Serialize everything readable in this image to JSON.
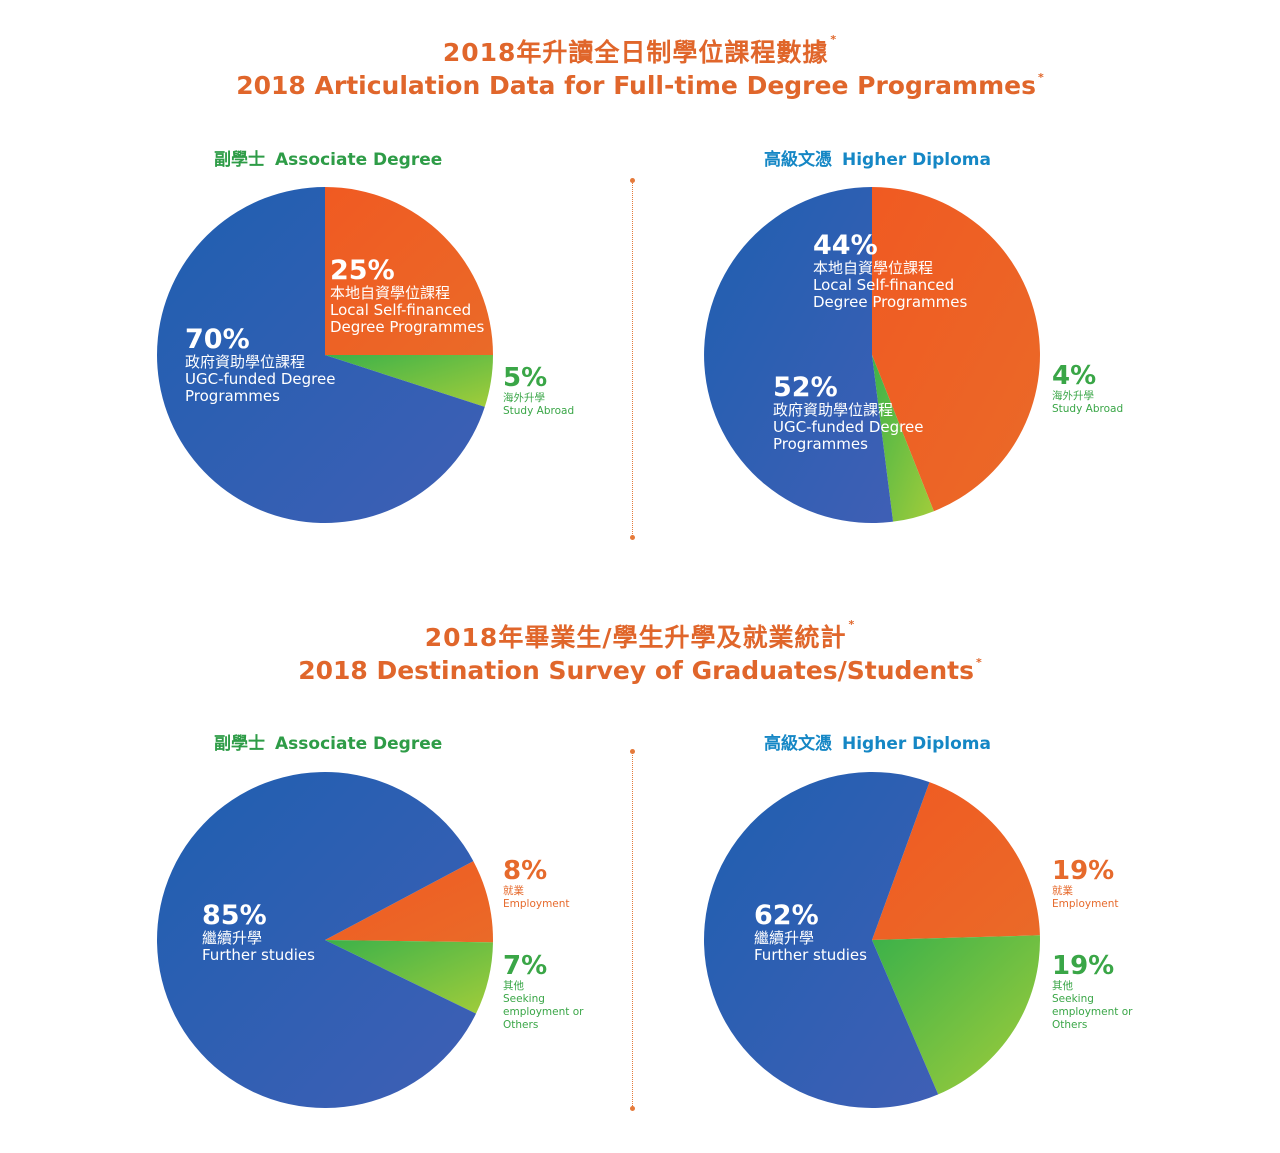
{
  "colors": {
    "title": "#e0662b",
    "associate_heading": "#2e9c47",
    "higher_heading": "#1587c5",
    "blue": "#2a63ad",
    "orange": "#ec6324",
    "green": "#6cc041",
    "employment_text": "#e66a2c",
    "others_text": "#3aa647",
    "divider": "#e57a3a"
  },
  "sections": [
    {
      "title_zh": "2018年升讀全日制學位課程數據",
      "title_en": "2018 Articulation Data for Full-time Degree Programmes",
      "asterisk": "*"
    },
    {
      "title_zh": "2018年畢業生/學生升學及就業統計",
      "title_en": "2018 Destination Survey of Graduates/Students",
      "asterisk": "*"
    }
  ],
  "charts": [
    {
      "heading_zh": "副學士",
      "heading_en": "Associate Degree",
      "labels": [
        {
          "pct": "25%",
          "zh": "本地自資學位課程",
          "en1": "Local Self-financed",
          "en2": "Degree Programmes"
        },
        {
          "pct": "70%",
          "zh": "政府資助學位課程",
          "en1": "UGC-funded Degree",
          "en2": "Programmes"
        },
        {
          "pct": "5%",
          "zh": "海外升學",
          "en1": "Study Abroad"
        }
      ]
    },
    {
      "heading_zh": "高級文憑",
      "heading_en": "Higher Diploma",
      "labels": [
        {
          "pct": "44%",
          "zh": "本地自資學位課程",
          "en1": "Local Self-financed",
          "en2": "Degree Programmes"
        },
        {
          "pct": "52%",
          "zh": "政府資助學位課程",
          "en1": "UGC-funded Degree",
          "en2": "Programmes"
        },
        {
          "pct": "4%",
          "zh": "海外升學",
          "en1": "Study Abroad"
        }
      ]
    },
    {
      "heading_zh": "副學士",
      "heading_en": "Associate Degree",
      "labels": [
        {
          "pct": "85%",
          "zh": "繼續升學",
          "en1": "Further studies"
        },
        {
          "pct": "8%",
          "zh": "就業",
          "en1": "Employment"
        },
        {
          "pct": "7%",
          "zh": "其他",
          "en1": "Seeking",
          "en2": "employment or",
          "en3": "Others"
        }
      ]
    },
    {
      "heading_zh": "高級文憑",
      "heading_en": "Higher Diploma",
      "labels": [
        {
          "pct": "62%",
          "zh": "繼續升學",
          "en1": "Further studies"
        },
        {
          "pct": "19%",
          "zh": "就業",
          "en1": "Employment"
        },
        {
          "pct": "19%",
          "zh": "其他",
          "en1": "Seeking",
          "en2": "employment or",
          "en3": "Others"
        }
      ]
    }
  ],
  "chart_data": [
    {
      "type": "pie",
      "title": "副學士 Associate Degree",
      "categories": [
        "本地自資學位課程 Local Self-financed Degree Programmes",
        "海外升學 Study Abroad",
        "政府資助學位課程 UGC-funded Degree Programmes"
      ],
      "values": [
        25,
        5,
        70
      ],
      "colors": [
        "#ec6324",
        "#6cc041",
        "#2a63ad"
      ]
    },
    {
      "type": "pie",
      "title": "高級文憑 Higher Diploma",
      "categories": [
        "本地自資學位課程 Local Self-financed Degree Programmes",
        "海外升學 Study Abroad",
        "政府資助學位課程 UGC-funded Degree Programmes"
      ],
      "values": [
        44,
        4,
        52
      ],
      "colors": [
        "#ec6324",
        "#6cc041",
        "#2a63ad"
      ]
    },
    {
      "type": "pie",
      "title": "副學士 Associate Degree",
      "categories": [
        "就業 Employment",
        "其他 Seeking employment or Others",
        "繼續升學 Further studies"
      ],
      "values": [
        8,
        7,
        85
      ],
      "colors": [
        "#ec6324",
        "#6cc041",
        "#2a63ad"
      ]
    },
    {
      "type": "pie",
      "title": "高級文憑 Higher Diploma",
      "categories": [
        "就業 Employment",
        "其他 Seeking employment or Others",
        "繼續升學 Further studies"
      ],
      "values": [
        19,
        19,
        62
      ],
      "colors": [
        "#ec6324",
        "#6cc041",
        "#2a63ad"
      ]
    }
  ]
}
